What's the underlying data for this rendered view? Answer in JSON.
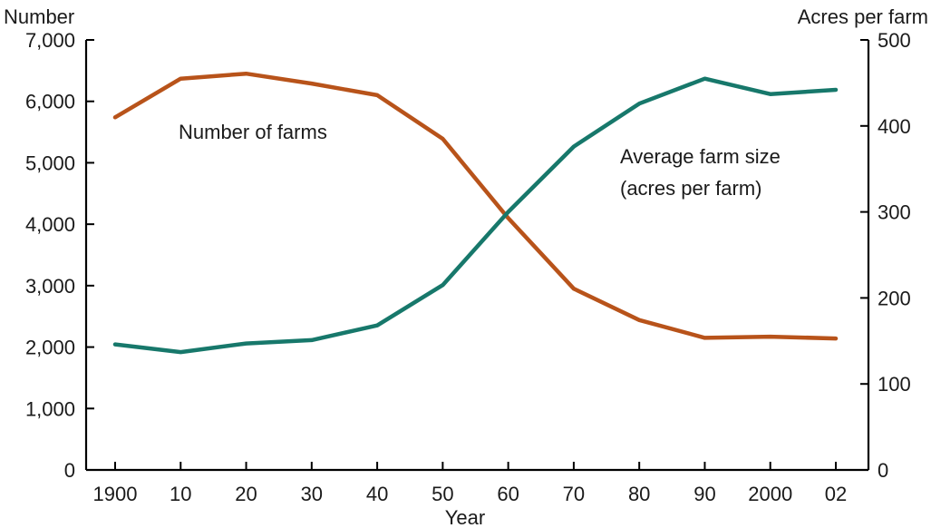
{
  "chart_data": {
    "type": "line",
    "title": "",
    "x": [
      "1900",
      "10",
      "20",
      "30",
      "40",
      "50",
      "60",
      "70",
      "80",
      "90",
      "2000",
      "02"
    ],
    "xlabel": "Year",
    "ylabel_left": "Number",
    "ylabel_right": "Acres per farm",
    "ylim_left": [
      0,
      7000
    ],
    "ylim_right": [
      0,
      500
    ],
    "yticks_left": [
      "0",
      "1,000",
      "2,000",
      "3,000",
      "4,000",
      "5,000",
      "6,000",
      "7,000"
    ],
    "yticks_right": [
      "0",
      "100",
      "200",
      "300",
      "400",
      "500"
    ],
    "grid": false,
    "legend": "none",
    "series": [
      {
        "axis": "left",
        "color": "#b8531a",
        "values": [
          5740,
          6370,
          6450,
          6290,
          6100,
          5390,
          4100,
          2950,
          2440,
          2150,
          2170,
          2140
        ]
      },
      {
        "axis": "right",
        "color": "#17786b",
        "values": [
          146,
          137,
          147,
          151,
          168,
          215,
          300,
          376,
          426,
          455,
          437,
          442
        ]
      }
    ],
    "annotations": [
      {
        "text": "Number of farms"
      },
      {
        "text": "Average farm size"
      },
      {
        "text": "(acres per farm)"
      }
    ]
  }
}
